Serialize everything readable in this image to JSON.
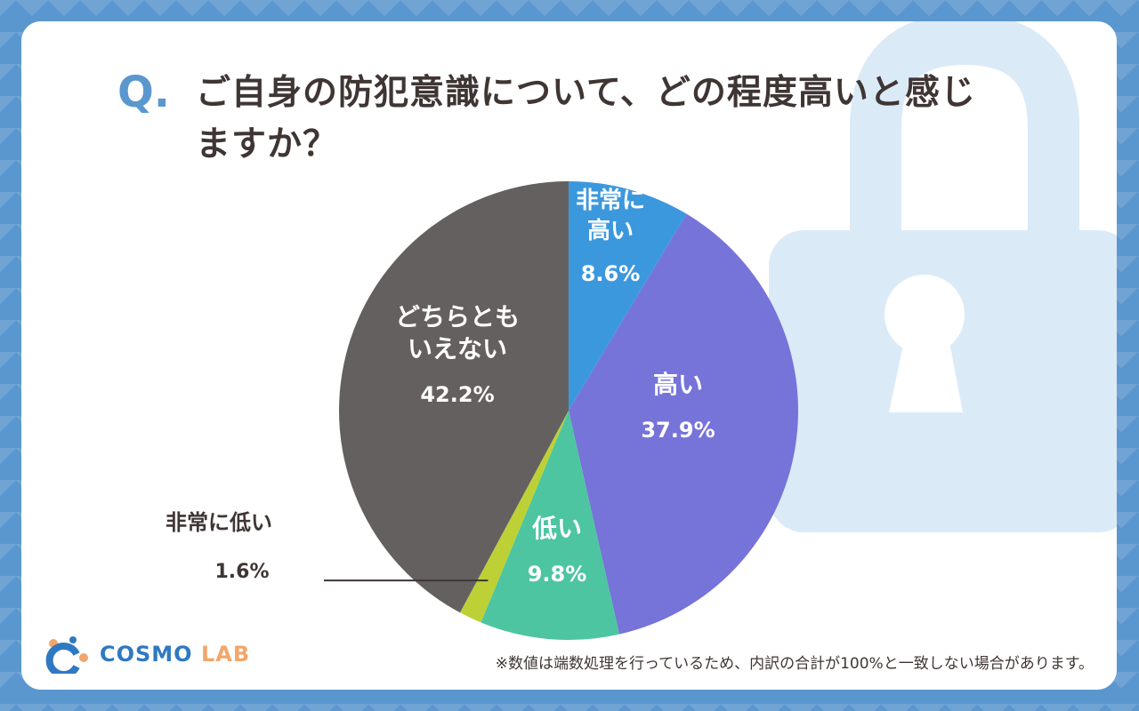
{
  "question": {
    "mark": "Q.",
    "text": "ご自身の防犯意識について、どの程度高いと感じますか？"
  },
  "chart_data": {
    "type": "pie",
    "title": "",
    "start_angle_deg": 0,
    "direction": "clockwise",
    "slices": [
      {
        "label": "非常に高い",
        "value": 8.6,
        "display": "8.6%",
        "color": "#3c98dd"
      },
      {
        "label": "高い",
        "value": 37.9,
        "display": "37.9%",
        "color": "#7673d9"
      },
      {
        "label": "低い",
        "value": 9.8,
        "display": "9.8%",
        "color": "#4dc5a1"
      },
      {
        "label": "非常に低い",
        "value": 1.6,
        "display": "1.6%",
        "color": "#bdd136"
      },
      {
        "label": "どちらともいえない",
        "value": 42.2,
        "display": "42.2%",
        "color": "#656060"
      }
    ]
  },
  "logo": {
    "part1": "COSMO",
    "part2": "LAB"
  },
  "footnote": "※数値は端数処理を行っているため、内訳の合計が100%と一致しない場合があります。",
  "colors": {
    "background": "#5b97cf",
    "accent": "#5b97cf",
    "text": "#3f3634",
    "lock": "#dbeaf7"
  }
}
